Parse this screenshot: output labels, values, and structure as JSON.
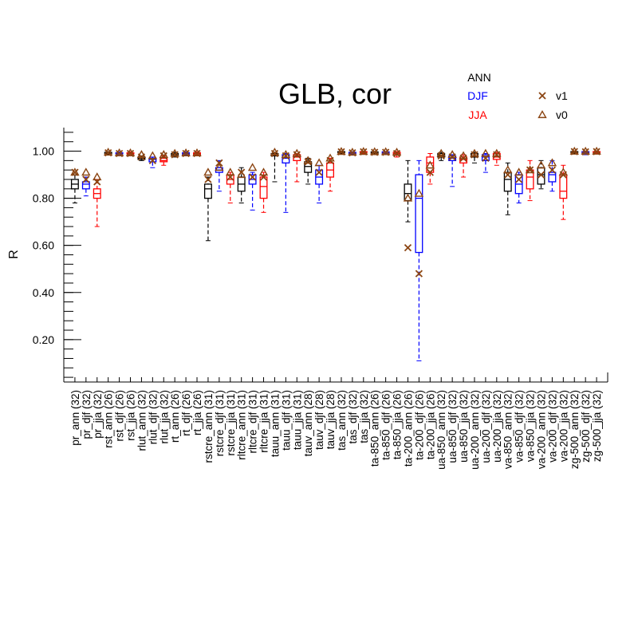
{
  "chart_data": {
    "type": "box",
    "title": "GLB, cor",
    "ylabel": "R",
    "xlabel": "",
    "ylim": [
      0.02,
      1.1
    ],
    "yticks": [
      0.2,
      0.4,
      0.6,
      0.8,
      1.0
    ],
    "ytick_labels": [
      "0.20",
      "0.40",
      "0.60",
      "0.80",
      "1.00"
    ],
    "season_legend": [
      {
        "label": "ANN",
        "color": "#000000"
      },
      {
        "label": "DJF",
        "color": "#0000ff"
      },
      {
        "label": "JJA",
        "color": "#ff0000"
      }
    ],
    "marker_legend": [
      {
        "label": "v1",
        "marker": "x",
        "color": "#8b4513"
      },
      {
        "label": "v0",
        "marker": "triangle",
        "color": "#8b4513"
      }
    ],
    "categories": [
      "pr_ann (32)",
      "pr_djf (32)",
      "pr_jja (32)",
      "rst_ann (26)",
      "rst_djf (26)",
      "rst_jja (26)",
      "rlut_ann (32)",
      "rlut_djf (32)",
      "rlut_jja (32)",
      "rt_ann (26)",
      "rt_djf (26)",
      "rt_jja (26)",
      "rstcre_ann (31)",
      "rstcre_djf (31)",
      "rstcre_jja (31)",
      "rltcre_ann (31)",
      "rltcre_djf (31)",
      "rltcre_jja (31)",
      "tauu_ann (31)",
      "tauu_djf (31)",
      "tauu_jja (31)",
      "tauv_ann (28)",
      "tauv_djf (28)",
      "tauv_jja (28)",
      "tas_ann (32)",
      "tas_djf (32)",
      "tas_jja (32)",
      "ta-850_ann (26)",
      "ta-850_djf (26)",
      "ta-850_jja (26)",
      "ta-200_ann (26)",
      "ta-200_djf (26)",
      "ta-200_jja (26)",
      "ua-850_ann (32)",
      "ua-850_djf (32)",
      "ua-850_jja (32)",
      "ua-200_ann (32)",
      "ua-200_djf (32)",
      "ua-200_jja (32)",
      "va-850_ann (32)",
      "va-850_djf (32)",
      "va-850_jja (32)",
      "va-200_ann (32)",
      "va-200_djf (32)",
      "va-200_jja (32)",
      "zg-500_ann (32)",
      "zg-500_djf (32)",
      "zg-500_jja (32)"
    ],
    "boxes": [
      {
        "min": 0.78,
        "q1": 0.84,
        "median": 0.86,
        "q3": 0.88,
        "max": 0.9,
        "v1": 0.91,
        "v0": 0.91
      },
      {
        "min": 0.81,
        "q1": 0.84,
        "median": 0.86,
        "q3": 0.87,
        "max": 0.89,
        "v1": 0.88,
        "v0": 0.91
      },
      {
        "min": 0.68,
        "q1": 0.8,
        "median": 0.82,
        "q3": 0.84,
        "max": 0.88,
        "v1": 0.87,
        "v0": 0.89
      },
      {
        "min": 0.985,
        "q1": 0.99,
        "median": 0.993,
        "q3": 0.995,
        "max": 0.998,
        "v1": 0.993,
        "v0": 0.995
      },
      {
        "min": 0.985,
        "q1": 0.988,
        "median": 0.99,
        "q3": 0.993,
        "max": 0.997,
        "v1": 0.99,
        "v0": 0.992
      },
      {
        "min": 0.985,
        "q1": 0.988,
        "median": 0.99,
        "q3": 0.993,
        "max": 0.997,
        "v1": 0.99,
        "v0": 0.992
      },
      {
        "min": 0.96,
        "q1": 0.965,
        "median": 0.97,
        "q3": 0.975,
        "max": 0.98,
        "v1": 0.975,
        "v0": 0.985
      },
      {
        "min": 0.93,
        "q1": 0.955,
        "median": 0.965,
        "q3": 0.97,
        "max": 0.975,
        "v1": 0.96,
        "v0": 0.98
      },
      {
        "min": 0.94,
        "q1": 0.955,
        "median": 0.96,
        "q3": 0.97,
        "max": 0.98,
        "v1": 0.98,
        "v0": 0.985
      },
      {
        "min": 0.975,
        "q1": 0.98,
        "median": 0.985,
        "q3": 0.99,
        "max": 0.995,
        "v1": 0.985,
        "v0": 0.99
      },
      {
        "min": 0.98,
        "q1": 0.985,
        "median": 0.99,
        "q3": 0.993,
        "max": 0.997,
        "v1": 0.99,
        "v0": 0.992
      },
      {
        "min": 0.98,
        "q1": 0.985,
        "median": 0.99,
        "q3": 0.993,
        "max": 0.997,
        "v1": 0.99,
        "v0": 0.992
      },
      {
        "min": 0.62,
        "q1": 0.8,
        "median": 0.84,
        "q3": 0.86,
        "max": 0.89,
        "v1": 0.88,
        "v0": 0.91
      },
      {
        "min": 0.83,
        "q1": 0.91,
        "median": 0.92,
        "q3": 0.93,
        "max": 0.96,
        "v1": 0.95,
        "v0": 0.93
      },
      {
        "min": 0.78,
        "q1": 0.86,
        "median": 0.88,
        "q3": 0.9,
        "max": 0.91,
        "v1": 0.89,
        "v0": 0.91
      },
      {
        "min": 0.78,
        "q1": 0.83,
        "median": 0.86,
        "q3": 0.89,
        "max": 0.93,
        "v1": 0.91,
        "v0": 0.9
      },
      {
        "min": 0.75,
        "q1": 0.86,
        "median": 0.88,
        "q3": 0.9,
        "max": 0.91,
        "v1": 0.89,
        "v0": 0.93
      },
      {
        "min": 0.74,
        "q1": 0.8,
        "median": 0.85,
        "q3": 0.89,
        "max": 0.91,
        "v1": 0.89,
        "v0": 0.91
      },
      {
        "min": 0.87,
        "q1": 0.98,
        "median": 0.985,
        "q3": 0.99,
        "max": 0.995,
        "v1": 0.99,
        "v0": 0.995
      },
      {
        "min": 0.74,
        "q1": 0.95,
        "median": 0.97,
        "q3": 0.985,
        "max": 0.99,
        "v1": 0.98,
        "v0": 0.985
      },
      {
        "min": 0.87,
        "q1": 0.96,
        "median": 0.975,
        "q3": 0.985,
        "max": 0.99,
        "v1": 0.985,
        "v0": 0.99
      },
      {
        "min": 0.86,
        "q1": 0.91,
        "median": 0.935,
        "q3": 0.955,
        "max": 0.97,
        "v1": 0.955,
        "v0": 0.96
      },
      {
        "min": 0.78,
        "q1": 0.86,
        "median": 0.89,
        "q3": 0.92,
        "max": 0.94,
        "v1": 0.91,
        "v0": 0.95
      },
      {
        "min": 0.83,
        "q1": 0.89,
        "median": 0.92,
        "q3": 0.95,
        "max": 0.97,
        "v1": 0.96,
        "v0": 0.97
      },
      {
        "min": 0.99,
        "q1": 0.995,
        "median": 0.997,
        "q3": 0.998,
        "max": 0.999,
        "v1": 0.997,
        "v0": 0.998
      },
      {
        "min": 0.985,
        "q1": 0.99,
        "median": 0.993,
        "q3": 0.995,
        "max": 0.998,
        "v1": 0.993,
        "v0": 0.995
      },
      {
        "min": 0.99,
        "q1": 0.995,
        "median": 0.997,
        "q3": 0.998,
        "max": 0.999,
        "v1": 0.997,
        "v0": 0.998
      },
      {
        "min": 0.985,
        "q1": 0.99,
        "median": 0.995,
        "q3": 0.997,
        "max": 0.999,
        "v1": 0.995,
        "v0": 0.997
      },
      {
        "min": 0.985,
        "q1": 0.99,
        "median": 0.995,
        "q3": 0.997,
        "max": 0.999,
        "v1": 0.995,
        "v0": 0.997
      },
      {
        "min": 0.975,
        "q1": 0.985,
        "median": 0.99,
        "q3": 0.995,
        "max": 0.998,
        "v1": 0.99,
        "v0": 0.995
      },
      {
        "min": 0.7,
        "q1": 0.79,
        "median": 0.82,
        "q3": 0.86,
        "max": 0.96,
        "v1": 0.59,
        "v0": 0.8
      },
      {
        "min": 0.11,
        "q1": 0.57,
        "median": 0.8,
        "q3": 0.9,
        "max": 0.96,
        "v1": 0.48,
        "v0": 0.82
      },
      {
        "min": 0.86,
        "q1": 0.91,
        "median": 0.95,
        "q3": 0.975,
        "max": 0.99,
        "v1": 0.91,
        "v0": 0.94
      },
      {
        "min": 0.96,
        "q1": 0.975,
        "median": 0.982,
        "q3": 0.99,
        "max": 0.995,
        "v1": 0.98,
        "v0": 0.99
      },
      {
        "min": 0.85,
        "q1": 0.96,
        "median": 0.97,
        "q3": 0.98,
        "max": 0.985,
        "v1": 0.975,
        "v0": 0.985
      },
      {
        "min": 0.89,
        "q1": 0.95,
        "median": 0.965,
        "q3": 0.975,
        "max": 0.985,
        "v1": 0.97,
        "v0": 0.98
      },
      {
        "min": 0.95,
        "q1": 0.975,
        "median": 0.98,
        "q3": 0.99,
        "max": 0.995,
        "v1": 0.985,
        "v0": 0.99
      },
      {
        "min": 0.91,
        "q1": 0.96,
        "median": 0.975,
        "q3": 0.985,
        "max": 0.99,
        "v1": 0.97,
        "v0": 0.99
      },
      {
        "min": 0.94,
        "q1": 0.965,
        "median": 0.975,
        "q3": 0.99,
        "max": 0.995,
        "v1": 0.985,
        "v0": 0.99
      },
      {
        "min": 0.73,
        "q1": 0.83,
        "median": 0.88,
        "q3": 0.91,
        "max": 0.95,
        "v1": 0.9,
        "v0": 0.92
      },
      {
        "min": 0.78,
        "q1": 0.82,
        "median": 0.86,
        "q3": 0.9,
        "max": 0.91,
        "v1": 0.88,
        "v0": 0.91
      },
      {
        "min": 0.79,
        "q1": 0.84,
        "median": 0.89,
        "q3": 0.92,
        "max": 0.96,
        "v1": 0.92,
        "v0": 0.92
      },
      {
        "min": 0.84,
        "q1": 0.86,
        "median": 0.9,
        "q3": 0.93,
        "max": 0.96,
        "v1": 0.9,
        "v0": 0.94
      },
      {
        "min": 0.83,
        "q1": 0.87,
        "median": 0.9,
        "q3": 0.91,
        "max": 0.96,
        "v1": 0.92,
        "v0": 0.95
      },
      {
        "min": 0.71,
        "q1": 0.8,
        "median": 0.83,
        "q3": 0.9,
        "max": 0.94,
        "v1": 0.9,
        "v0": 0.91
      },
      {
        "min": 0.99,
        "q1": 0.995,
        "median": 0.997,
        "q3": 0.998,
        "max": 0.999,
        "v1": 0.998,
        "v0": 0.999
      },
      {
        "min": 0.985,
        "q1": 0.993,
        "median": 0.996,
        "q3": 0.998,
        "max": 0.999,
        "v1": 0.997,
        "v0": 0.999
      },
      {
        "min": 0.99,
        "q1": 0.995,
        "median": 0.997,
        "q3": 0.998,
        "max": 0.999,
        "v1": 0.998,
        "v0": 0.999
      }
    ]
  }
}
